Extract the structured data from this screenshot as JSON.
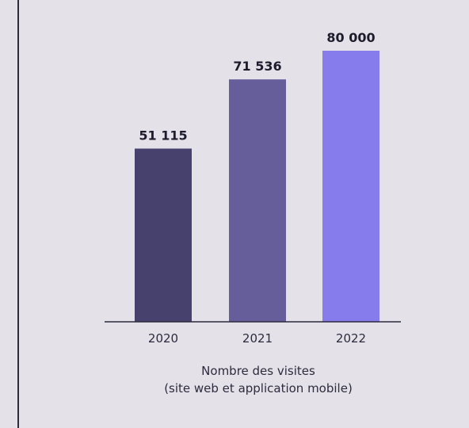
{
  "chart_data": {
    "type": "bar",
    "categories": [
      "2020",
      "2021",
      "2022"
    ],
    "values": [
      51115,
      71536,
      80000
    ],
    "value_labels": [
      "51 115",
      "71 536",
      "80 000"
    ],
    "colors": [
      "#47426d",
      "#655e9a",
      "#877cec"
    ],
    "title": "",
    "xlabel": "Nombre des visites",
    "xlabel_note": "(site web et application mobile)",
    "ylabel": "",
    "ylim": [
      0,
      80000
    ],
    "grid": false,
    "legend": false
  }
}
